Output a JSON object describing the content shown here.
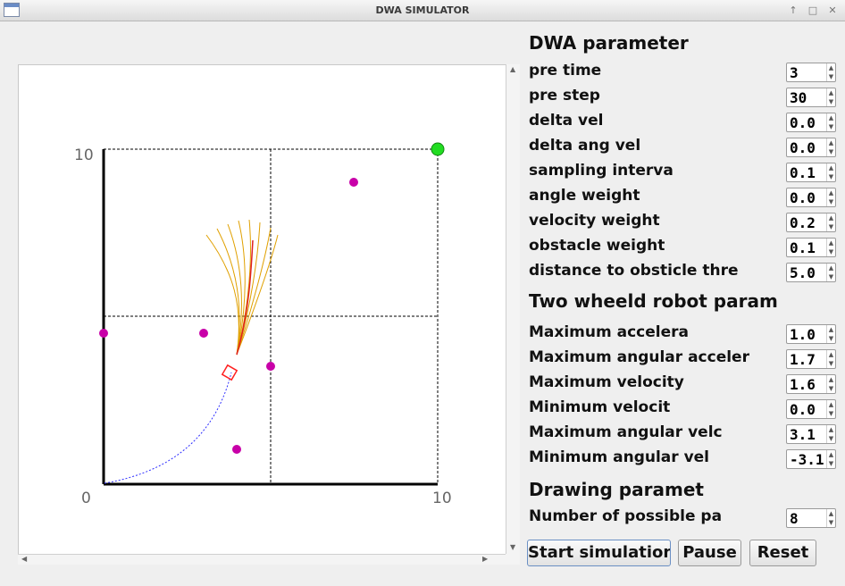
{
  "window": {
    "title": "DWA SIMULATOR",
    "controls": [
      "↑",
      "□",
      "✕"
    ]
  },
  "canvas": {
    "axis_labels": {
      "y_top": "10",
      "x_origin": "0",
      "x_right": "10"
    },
    "colors": {
      "obstacle": "#c800a8",
      "goal": "#22dd22",
      "robot": "#ff2020",
      "path": "#3030ff",
      "candidate": "#e0a000",
      "best": "#e02020"
    }
  },
  "sections": {
    "dwa": "DWA parameter",
    "robot": "Two wheeld robot param",
    "drawing": "Drawing paramet"
  },
  "dwa_params": [
    {
      "label": "pre time",
      "value": "3"
    },
    {
      "label": "pre step",
      "value": "30"
    },
    {
      "label": "delta vel",
      "value": "0.0"
    },
    {
      "label": "delta ang vel",
      "value": "0.0"
    },
    {
      "label": "sampling interva",
      "value": "0.1"
    },
    {
      "label": "angle weight",
      "value": "0.0"
    },
    {
      "label": "velocity weight",
      "value": "0.2"
    },
    {
      "label": "obstacle weight",
      "value": "0.1"
    },
    {
      "label": "distance to obsticle thre",
      "value": "5.0"
    }
  ],
  "robot_params": [
    {
      "label": "Maximum accelera",
      "value": "1.0"
    },
    {
      "label": "Maximum angular acceler",
      "value": "1.7"
    },
    {
      "label": "Maximum velocity",
      "value": "1.6"
    },
    {
      "label": "Minimum velocit",
      "value": "0.0"
    },
    {
      "label": "Maximum angular velc",
      "value": "3.1"
    },
    {
      "label": "Minimum angular vel",
      "value": "-3.1"
    }
  ],
  "drawing_params": [
    {
      "label": "Number of possible pa",
      "value": "8"
    }
  ],
  "buttons": {
    "start": "Start simulation",
    "pause": "Pause",
    "reset": "Reset"
  }
}
